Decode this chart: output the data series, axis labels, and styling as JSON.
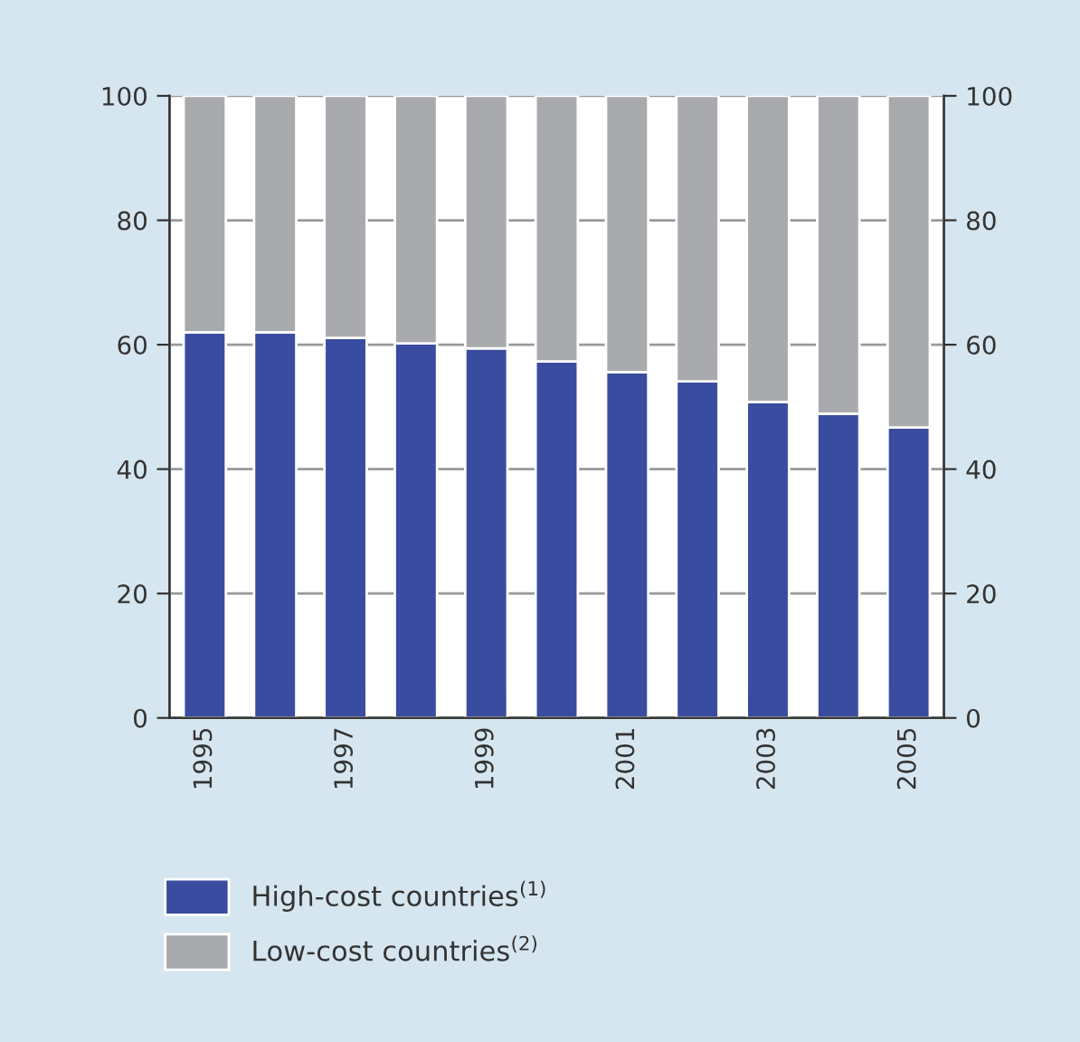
{
  "chart_data": {
    "type": "bar",
    "stacked": true,
    "categories": [
      "1995",
      null,
      "1997",
      null,
      "1999",
      null,
      "2001",
      null,
      "2003",
      null,
      "2005"
    ],
    "series": [
      {
        "name": "High-cost countries$^{(1)}$",
        "color": "#3a4c9f",
        "values": [
          62,
          62,
          61.1,
          60.2,
          59.4,
          57.3,
          55.6,
          54.1,
          50.8,
          48.9,
          46.7
        ]
      },
      {
        "name": "Low-cost countries$^{(2)}$",
        "color": "#a9aaae",
        "values": [
          38,
          38,
          38.9,
          39.8,
          40.6,
          42.7,
          44.4,
          45.9,
          49.2,
          51.1,
          53.3
        ]
      }
    ],
    "ylim": [
      0,
      100
    ],
    "yticks": [
      0,
      20,
      40,
      60,
      80,
      100
    ],
    "y2lim": [
      0,
      100
    ],
    "y2ticks": [
      0,
      20,
      40,
      60,
      80,
      100
    ],
    "grid": "y",
    "legend": "bottom"
  }
}
